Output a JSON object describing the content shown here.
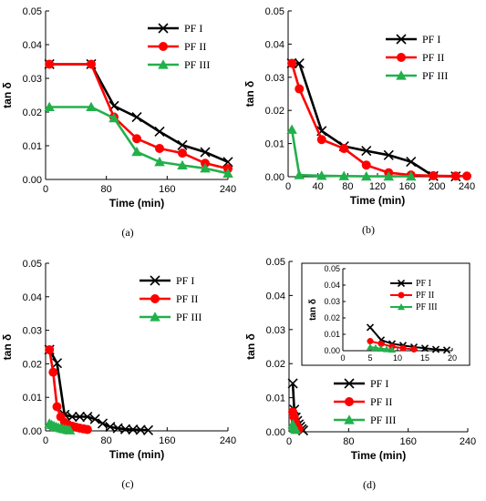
{
  "colors": {
    "PF I": "#000000",
    "PF II": "#ff0000",
    "PF III": "#22b04b"
  },
  "chart_data": [
    {
      "panel": "(a)",
      "type": "line",
      "xlabel": "Time (min)",
      "ylabel": "tan δ",
      "xlim": [
        0,
        240
      ],
      "ylim": [
        0,
        0.05
      ],
      "xticks": [
        0,
        80,
        160,
        240
      ],
      "yticks": [
        0,
        0.01,
        0.02,
        0.03,
        0.04,
        0.05
      ],
      "legend": "top-right",
      "series": [
        {
          "name": "PF I",
          "x": [
            5,
            60,
            90,
            120,
            150,
            180,
            210,
            240
          ],
          "y": [
            0.0342,
            0.0342,
            0.0218,
            0.0185,
            0.0142,
            0.0102,
            0.0081,
            0.0052
          ]
        },
        {
          "name": "PF II",
          "x": [
            5,
            60,
            90,
            120,
            150,
            180,
            210,
            240
          ],
          "y": [
            0.0342,
            0.0342,
            0.0185,
            0.0121,
            0.0092,
            0.0078,
            0.0048,
            0.0032
          ]
        },
        {
          "name": "PF III",
          "x": [
            5,
            60,
            90,
            120,
            150,
            180,
            210,
            240
          ],
          "y": [
            0.0215,
            0.0215,
            0.0182,
            0.0082,
            0.0052,
            0.0042,
            0.0033,
            0.0018
          ]
        }
      ]
    },
    {
      "panel": "(b)",
      "type": "line",
      "xlabel": "Time (min)",
      "ylabel": "tan δ",
      "xlim": [
        0,
        240
      ],
      "ylim": [
        0,
        0.05
      ],
      "xticks": [
        0,
        40,
        80,
        120,
        160,
        200,
        240
      ],
      "yticks": [
        0,
        0.01,
        0.02,
        0.03,
        0.04,
        0.05
      ],
      "legend": "top-right",
      "series": [
        {
          "name": "PF I",
          "x": [
            5,
            15,
            45,
            75,
            105,
            135,
            165,
            195,
            225
          ],
          "y": [
            0.0342,
            0.0342,
            0.0138,
            0.0092,
            0.0078,
            0.0065,
            0.0045,
            0.0002,
            0.0001
          ]
        },
        {
          "name": "PF II",
          "x": [
            5,
            15,
            45,
            75,
            105,
            135,
            165,
            195,
            225,
            240
          ],
          "y": [
            0.0342,
            0.0265,
            0.0112,
            0.0085,
            0.0035,
            0.0012,
            0.0005,
            0.0003,
            0.0002,
            0.0002
          ]
        },
        {
          "name": "PF III",
          "x": [
            5,
            15,
            45,
            75,
            105,
            135,
            165
          ],
          "y": [
            0.0142,
            0.0005,
            0.0003,
            0.0002,
            0.0001,
            0.0001,
            0.0001
          ]
        }
      ]
    },
    {
      "panel": "(c)",
      "type": "line",
      "xlabel": "Time (min)",
      "ylabel": "tan δ",
      "xlim": [
        0,
        240
      ],
      "ylim": [
        0,
        0.05
      ],
      "xticks": [
        0,
        80,
        160,
        240
      ],
      "yticks": [
        0,
        0.01,
        0.02,
        0.03,
        0.04,
        0.05
      ],
      "legend": "top-right",
      "series": [
        {
          "name": "PF I",
          "x": [
            5,
            15,
            25,
            35,
            45,
            55,
            65,
            75,
            85,
            95,
            105,
            115,
            125,
            135
          ],
          "y": [
            0.0242,
            0.0202,
            0.0048,
            0.0042,
            0.0042,
            0.0042,
            0.0035,
            0.0022,
            0.0012,
            0.0008,
            0.0005,
            0.0004,
            0.0003,
            0.0002
          ]
        },
        {
          "name": "PF II",
          "x": [
            5,
            10,
            15,
            20,
            25,
            30,
            35,
            40,
            45,
            50,
            55
          ],
          "y": [
            0.0242,
            0.0175,
            0.0072,
            0.0042,
            0.0025,
            0.0018,
            0.0014,
            0.0011,
            0.0008,
            0.0006,
            0.0004
          ]
        },
        {
          "name": "PF III",
          "x": [
            5,
            8,
            11,
            14,
            17,
            20,
            23,
            26,
            29,
            32
          ],
          "y": [
            0.0022,
            0.0018,
            0.0015,
            0.0012,
            0.001,
            0.0008,
            0.0006,
            0.0005,
            0.0003,
            0.0002
          ]
        }
      ]
    },
    {
      "panel": "(d)",
      "type": "line",
      "xlabel": "Time (min)",
      "ylabel": "tan δ",
      "xlim": [
        0,
        240
      ],
      "ylim": [
        0,
        0.05
      ],
      "xticks": [
        0,
        80,
        160,
        240
      ],
      "yticks": [
        0,
        0.01,
        0.02,
        0.03,
        0.04,
        0.05
      ],
      "legend": "bottom-right",
      "series": [
        {
          "name": "PF I",
          "x": [
            5,
            7,
            9,
            11,
            13,
            15,
            17,
            19
          ],
          "y": [
            0.0142,
            0.0065,
            0.0042,
            0.0032,
            0.0022,
            0.0015,
            0.0008,
            0.0004
          ]
        },
        {
          "name": "PF II",
          "x": [
            5,
            7,
            9,
            11,
            13
          ],
          "y": [
            0.0058,
            0.0042,
            0.0025,
            0.0015,
            0.0008
          ]
        },
        {
          "name": "PF III",
          "x": [
            5,
            6,
            7,
            8,
            9
          ],
          "y": [
            0.0022,
            0.0018,
            0.0012,
            0.0009,
            0.0006
          ]
        }
      ],
      "inset": {
        "xlim": [
          0,
          20
        ],
        "ylim": [
          0,
          0.05
        ],
        "xticks": [
          0,
          5,
          10,
          15,
          20
        ],
        "yticks": [
          0,
          0.01,
          0.02,
          0.03,
          0.04,
          0.05
        ],
        "ylabel": "tan δ",
        "legend": "top-right",
        "series": [
          {
            "name": "PF I",
            "x": [
              5,
              7,
              9,
              11,
              13,
              15,
              17,
              19
            ],
            "y": [
              0.0142,
              0.0065,
              0.0042,
              0.0032,
              0.0022,
              0.0015,
              0.0008,
              0.0004
            ]
          },
          {
            "name": "PF II",
            "x": [
              5,
              7,
              9,
              11,
              13
            ],
            "y": [
              0.0058,
              0.0042,
              0.0025,
              0.0015,
              0.0008
            ]
          },
          {
            "name": "PF III",
            "x": [
              5,
              6,
              7,
              8,
              9
            ],
            "y": [
              0.0022,
              0.0018,
              0.0012,
              0.0009,
              0.0006
            ]
          }
        ]
      }
    }
  ]
}
